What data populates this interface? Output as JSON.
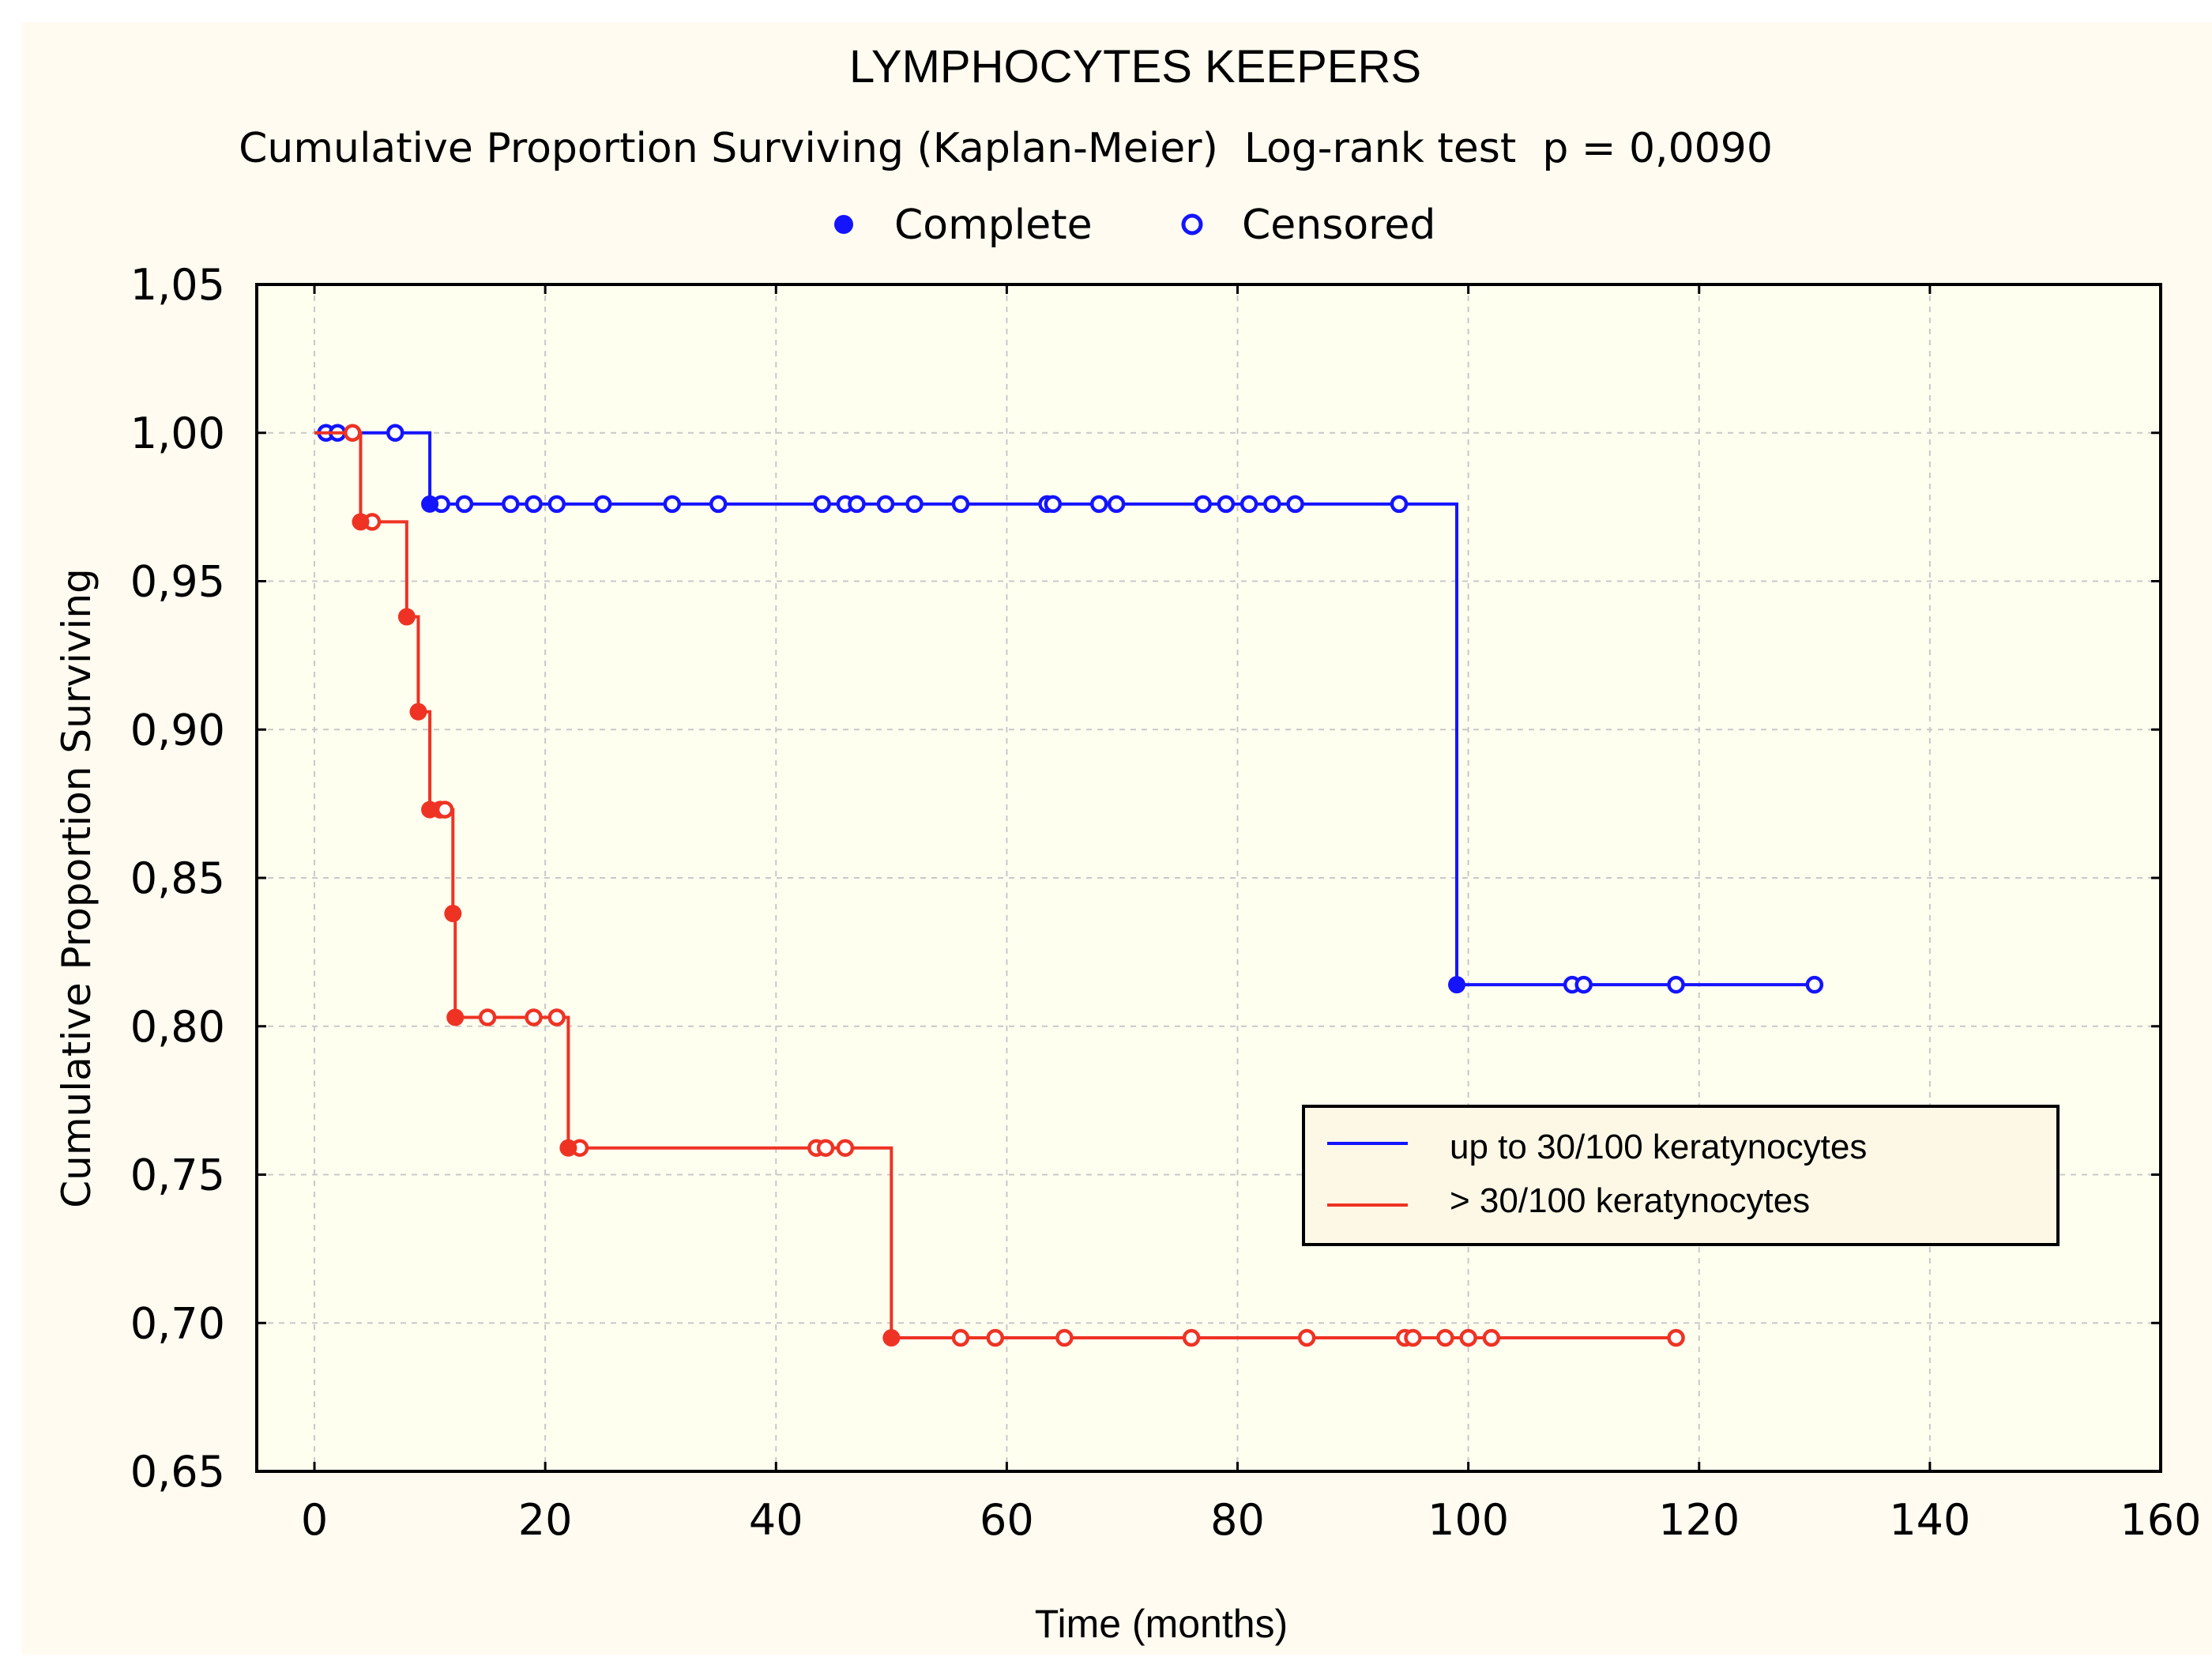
{
  "chart_data": {
    "type": "line",
    "title": "LYMPHOCYTES KEEPERS",
    "subtitle": "Cumulative Proportion Surviving (Kaplan-Meier)  Log-rank test  p = 0,0090",
    "marker_legend": {
      "complete": "Complete",
      "censored": "Censored"
    },
    "xlabel": "Time (months)",
    "ylabel": "Cumulative Proportion Surviving",
    "xlim": [
      -5,
      160
    ],
    "ylim": [
      0.65,
      1.05
    ],
    "xticks": [
      0,
      20,
      40,
      60,
      80,
      100,
      120,
      140,
      160
    ],
    "yticks": [
      0.65,
      0.7,
      0.75,
      0.8,
      0.85,
      0.9,
      0.95,
      1.0,
      1.05
    ],
    "x_tick_labels": [
      "0",
      "20",
      "40",
      "60",
      "80",
      "100",
      "120",
      "140",
      "160"
    ],
    "y_tick_labels": [
      "0,65",
      "0,70",
      "0,75",
      "0,80",
      "0,85",
      "0,90",
      "0,95",
      "1,00",
      "1,05"
    ],
    "grid": true,
    "legend_position": "bottom-right",
    "series": [
      {
        "name": "up to 30/100 keratynocytes",
        "color": "#1414ff",
        "steps": [
          [
            0,
            1.0
          ],
          [
            10,
            0.976
          ],
          [
            99,
            0.814
          ],
          [
            130,
            0.814
          ]
        ],
        "complete": [
          [
            10,
            0.976
          ],
          [
            99,
            0.814
          ]
        ],
        "censored": [
          [
            1,
            1.0
          ],
          [
            2,
            1.0
          ],
          [
            7,
            1.0
          ],
          [
            11,
            0.976
          ],
          [
            13,
            0.976
          ],
          [
            17,
            0.976
          ],
          [
            19,
            0.976
          ],
          [
            21,
            0.976
          ],
          [
            25,
            0.976
          ],
          [
            31,
            0.976
          ],
          [
            35,
            0.976
          ],
          [
            44,
            0.976
          ],
          [
            46,
            0.976
          ],
          [
            47,
            0.976
          ],
          [
            49.5,
            0.976
          ],
          [
            52,
            0.976
          ],
          [
            56,
            0.976
          ],
          [
            63.5,
            0.976
          ],
          [
            64,
            0.976
          ],
          [
            68,
            0.976
          ],
          [
            69.5,
            0.976
          ],
          [
            77,
            0.976
          ],
          [
            79,
            0.976
          ],
          [
            81,
            0.976
          ],
          [
            83,
            0.976
          ],
          [
            85,
            0.976
          ],
          [
            94,
            0.976
          ],
          [
            109,
            0.814
          ],
          [
            110,
            0.814
          ],
          [
            118,
            0.814
          ],
          [
            130,
            0.814
          ]
        ]
      },
      {
        "name": "> 30/100 keratynocytes",
        "color": "#ee3324",
        "steps": [
          [
            0,
            1.0
          ],
          [
            4,
            0.97
          ],
          [
            8,
            0.938
          ],
          [
            9,
            0.906
          ],
          [
            10,
            0.873
          ],
          [
            12,
            0.838
          ],
          [
            12.2,
            0.803
          ],
          [
            22,
            0.759
          ],
          [
            50,
            0.695
          ],
          [
            118,
            0.695
          ]
        ],
        "complete": [
          [
            4,
            0.97
          ],
          [
            8,
            0.938
          ],
          [
            9,
            0.906
          ],
          [
            10,
            0.873
          ],
          [
            12,
            0.838
          ],
          [
            12.2,
            0.803
          ],
          [
            22,
            0.759
          ],
          [
            50,
            0.695
          ]
        ],
        "censored": [
          [
            3.3,
            1.0
          ],
          [
            5,
            0.97
          ],
          [
            10.9,
            0.873
          ],
          [
            11.3,
            0.873
          ],
          [
            15,
            0.803
          ],
          [
            19,
            0.803
          ],
          [
            21,
            0.803
          ],
          [
            23,
            0.759
          ],
          [
            43.5,
            0.759
          ],
          [
            44.3,
            0.759
          ],
          [
            46,
            0.759
          ],
          [
            56,
            0.695
          ],
          [
            59,
            0.695
          ],
          [
            65,
            0.695
          ],
          [
            76,
            0.695
          ],
          [
            86,
            0.695
          ],
          [
            94.5,
            0.695
          ],
          [
            95.2,
            0.695
          ],
          [
            98,
            0.695
          ],
          [
            100,
            0.695
          ],
          [
            102,
            0.695
          ],
          [
            118,
            0.695
          ]
        ]
      }
    ]
  }
}
